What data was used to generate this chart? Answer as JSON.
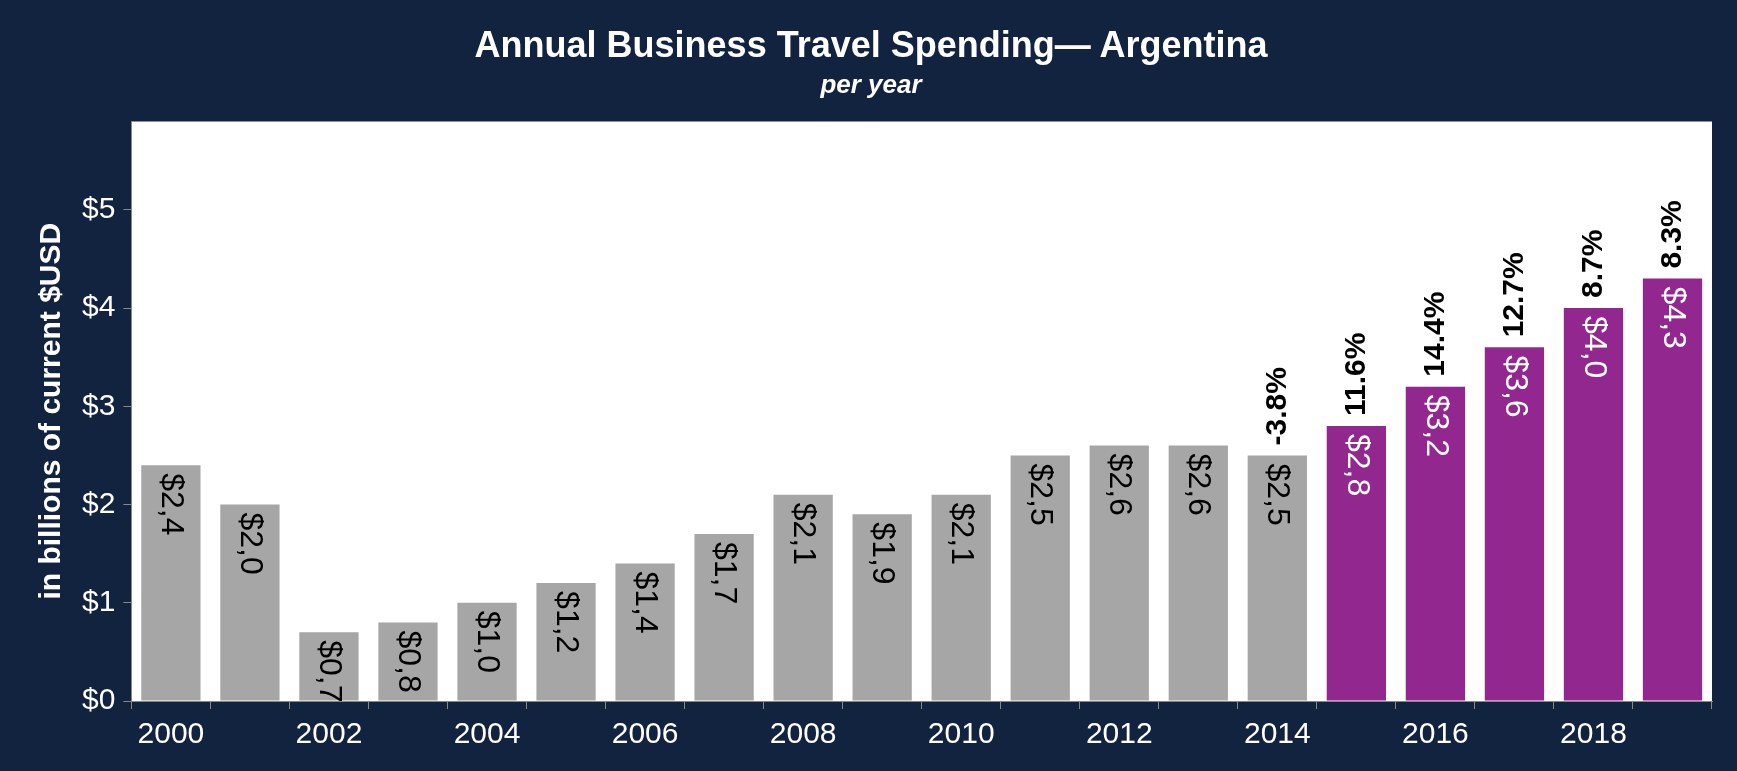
{
  "chart_data": {
    "type": "bar",
    "title": "Annual Business Travel Spending— Argentina",
    "subtitle": "per year",
    "ylabel": "in billions of current $USD",
    "categories": [
      "2000",
      null,
      "2002",
      null,
      "2004",
      null,
      "2006",
      null,
      "2008",
      null,
      "2010",
      null,
      "2012",
      null,
      "2014",
      null,
      "2016",
      null,
      "2018",
      null
    ],
    "values": [
      2.4,
      2.0,
      0.7,
      0.8,
      1.0,
      1.2,
      1.4,
      1.7,
      2.1,
      1.9,
      2.1,
      2.5,
      2.6,
      2.6,
      2.5,
      2.8,
      3.2,
      3.6,
      4.0,
      4.3
    ],
    "value_labels": [
      "$2,4",
      "$2,0",
      "$0,7",
      "$0,8",
      "$1,0",
      "$1,2",
      "$1,4",
      "$1,7",
      "$2,1",
      "$1,9",
      "$2,1",
      "$2,5",
      "$2,6",
      "$2,6",
      "$2,5",
      "$2,8",
      "$3,2",
      "$3,6",
      "$4,0",
      "$4,3"
    ],
    "colors": [
      "#a6a6a6",
      "#a6a6a6",
      "#a6a6a6",
      "#a6a6a6",
      "#a6a6a6",
      "#a6a6a6",
      "#a6a6a6",
      "#a6a6a6",
      "#a6a6a6",
      "#a6a6a6",
      "#a6a6a6",
      "#a6a6a6",
      "#a6a6a6",
      "#a6a6a6",
      "#a6a6a6",
      "#92278f",
      "#92278f",
      "#92278f",
      "#92278f",
      "#92278f"
    ],
    "ylim": [
      0,
      5.9
    ],
    "yticks": [
      {
        "value": 0,
        "label": "$0"
      },
      {
        "value": 1,
        "label": "$1"
      },
      {
        "value": 2,
        "label": "$2"
      },
      {
        "value": 3,
        "label": "$3"
      },
      {
        "value": 4,
        "label": "$4"
      },
      {
        "value": 5,
        "label": "$5"
      }
    ],
    "annotations": [
      {
        "text": "-3.8%",
        "x": "2014",
        "y": 2.5
      },
      {
        "text": "11.6%",
        "y": 2.8
      },
      {
        "text": "14.4%",
        "x": "2016",
        "y": 3.2
      },
      {
        "text": "12.7%",
        "y": 3.6
      },
      {
        "text": "8.7%",
        "x": "2018",
        "y": 4.0
      },
      {
        "text": "8.3%",
        "y": 4.3
      }
    ],
    "grid": false,
    "legend": false
  }
}
